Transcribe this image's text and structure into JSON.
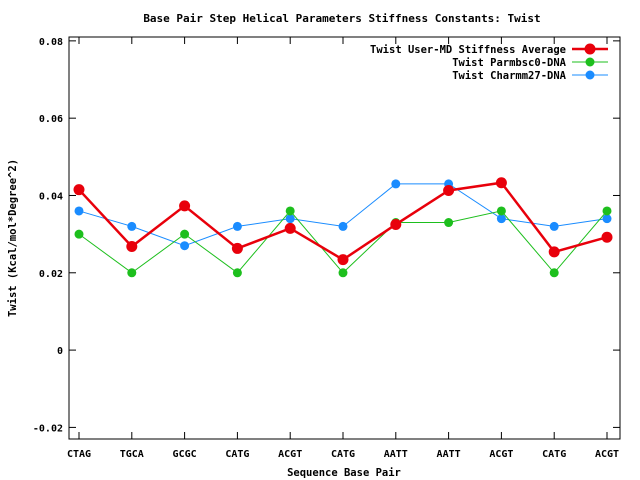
{
  "chart_data": {
    "type": "line",
    "title": "Base Pair Step Helical Parameters Stiffness Constants: Twist",
    "xlabel": "Sequence Base Pair",
    "ylabel": "Twist (Kcal/mol*Degree^2)",
    "categories": [
      "CTAG",
      "TGCA",
      "GCGC",
      "CATG",
      "ACGT",
      "CATG",
      "AATT",
      "AATT",
      "ACGT",
      "CATG",
      "ACGT"
    ],
    "ylim": [
      -0.023,
      0.081
    ],
    "yticks": [
      -0.02,
      0,
      0.02,
      0.04,
      0.06,
      0.08
    ],
    "ytick_labels": [
      "-0.02",
      "0",
      "0.02",
      "0.04",
      "0.06",
      "0.08"
    ],
    "grid": false,
    "legend_position": "top-right",
    "series": [
      {
        "name": "Twist User-MD Stiffness Average",
        "color": "#e8000b",
        "values": [
          0.0415,
          0.0268,
          0.0373,
          0.0263,
          0.0315,
          0.0234,
          0.0325,
          0.0413,
          0.0433,
          0.0254,
          0.0292
        ]
      },
      {
        "name": "Twist Parmbsc0-DNA",
        "color": "#1dbf1d",
        "values": [
          0.03,
          0.02,
          0.03,
          0.02,
          0.036,
          0.02,
          0.033,
          0.033,
          0.036,
          0.02,
          0.036
        ]
      },
      {
        "name": "Twist Charmm27-DNA",
        "color": "#1a8cff",
        "values": [
          0.036,
          0.032,
          0.027,
          0.032,
          0.034,
          0.032,
          0.043,
          0.043,
          0.034,
          0.032,
          0.034
        ]
      }
    ]
  }
}
